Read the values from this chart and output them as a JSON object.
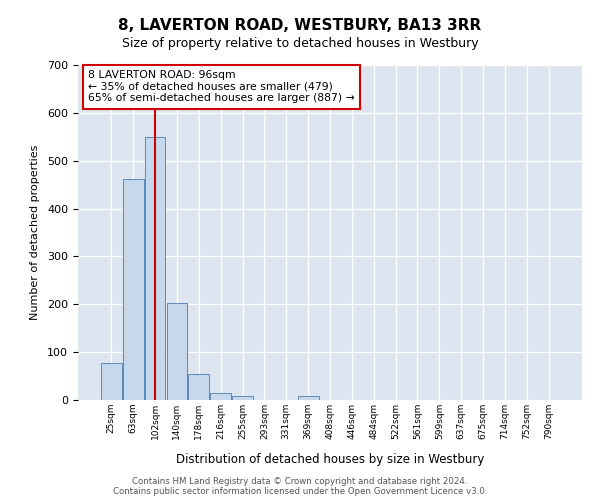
{
  "title_line1": "8, LAVERTON ROAD, WESTBURY, BA13 3RR",
  "title_line2": "Size of property relative to detached houses in Westbury",
  "xlabel": "Distribution of detached houses by size in Westbury",
  "ylabel": "Number of detached properties",
  "footer_line1": "Contains HM Land Registry data © Crown copyright and database right 2024.",
  "footer_line2": "Contains public sector information licensed under the Open Government Licence v3.0.",
  "bin_labels": [
    "25sqm",
    "63sqm",
    "102sqm",
    "140sqm",
    "178sqm",
    "216sqm",
    "255sqm",
    "293sqm",
    "331sqm",
    "369sqm",
    "408sqm",
    "446sqm",
    "484sqm",
    "522sqm",
    "561sqm",
    "599sqm",
    "637sqm",
    "675sqm",
    "714sqm",
    "752sqm",
    "790sqm"
  ],
  "bar_values": [
    78,
    462,
    550,
    203,
    55,
    14,
    8,
    0,
    0,
    8,
    0,
    0,
    0,
    0,
    0,
    0,
    0,
    0,
    0,
    0,
    0
  ],
  "bar_color": "#c8d8ec",
  "bar_edge_color": "#5b8ab5",
  "subject_bin_index": 2,
  "subject_label": "8 LAVERTON ROAD: 96sqm",
  "annotation_line2": "← 35% of detached houses are smaller (479)",
  "annotation_line3": "65% of semi-detached houses are larger (887) →",
  "annotation_box_edgecolor": "#cc0000",
  "vline_color": "#cc0000",
  "ylim": [
    0,
    700
  ],
  "yticks": [
    0,
    100,
    200,
    300,
    400,
    500,
    600,
    700
  ],
  "bg_color": "#dde6f0",
  "grid_color": "#ffffff"
}
